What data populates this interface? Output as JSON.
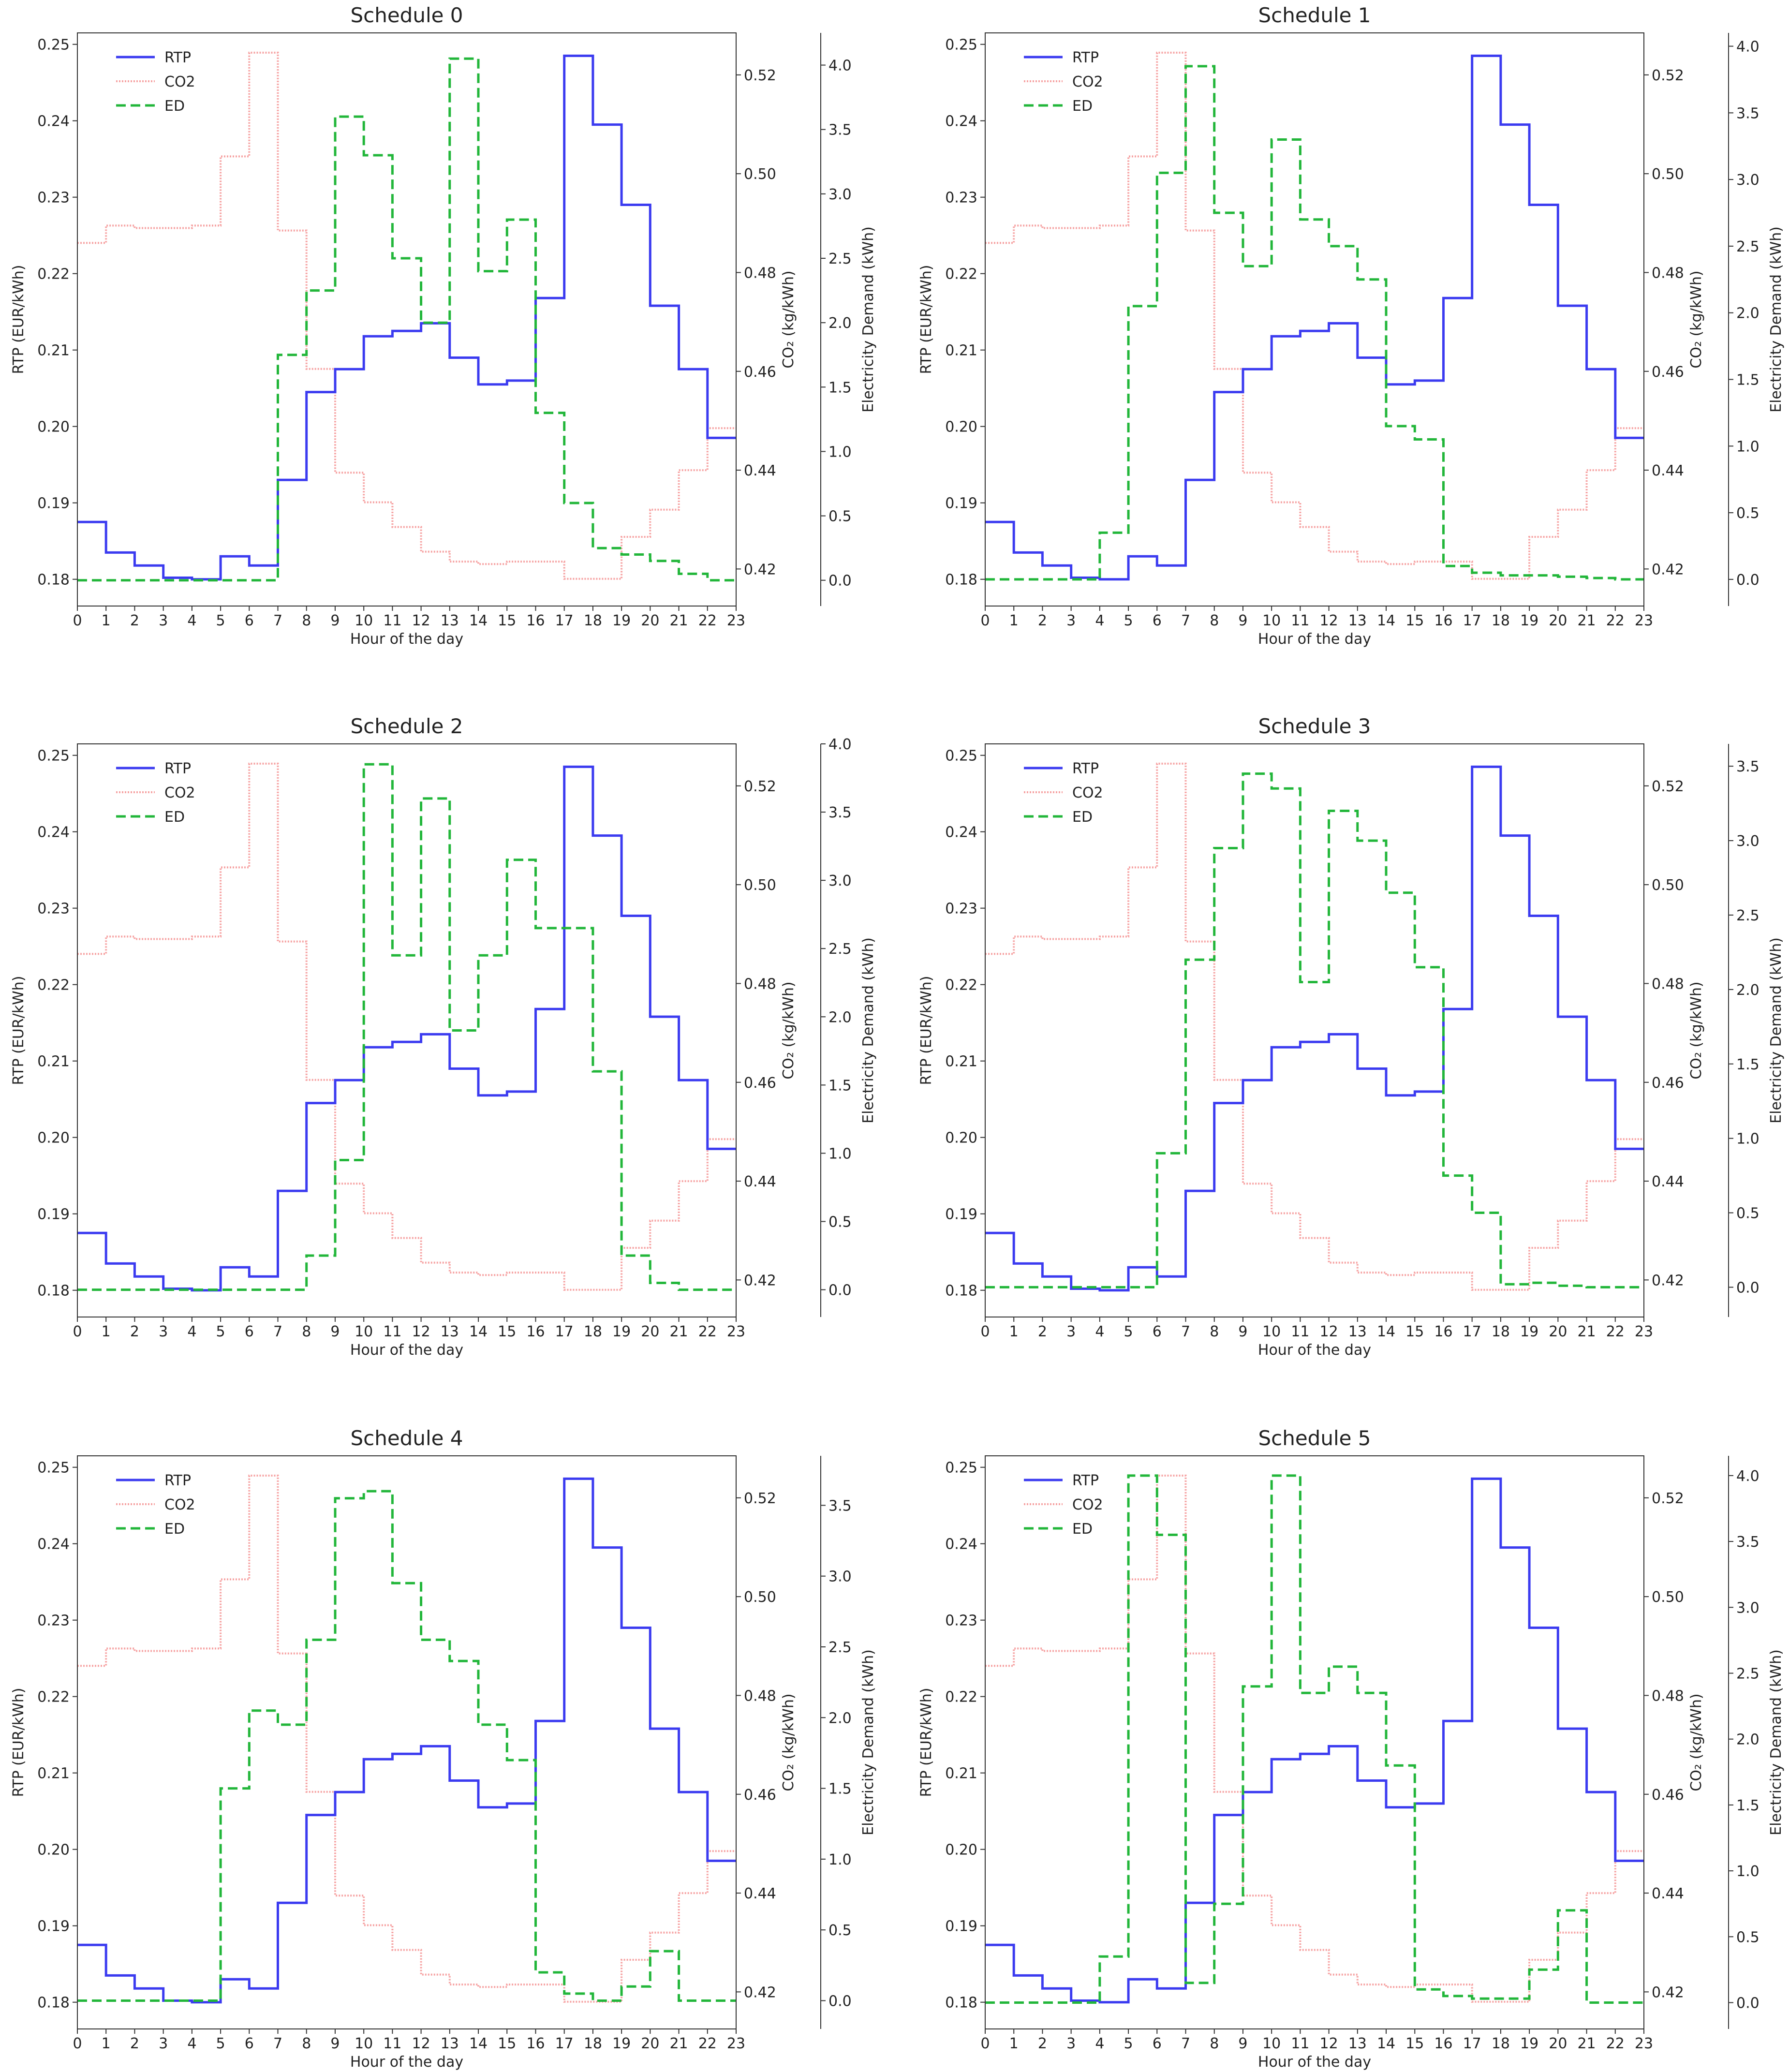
{
  "chart_data": [
    {
      "type": "line",
      "title": "Schedule 0",
      "xlabel": "Hour of the day",
      "ylabel": "RTP (EUR/kWh)",
      "y2label": "CO₂ (kg/kWh)",
      "y3label": "Electricity Demand (kWh)",
      "xticks": [
        "0",
        "1",
        "2",
        "3",
        "4",
        "5",
        "6",
        "7",
        "8",
        "9",
        "10",
        "11",
        "12",
        "13",
        "14",
        "15",
        "16",
        "17",
        "18",
        "19",
        "20",
        "21",
        "22",
        "23"
      ],
      "legend": [
        "RTP",
        "CO2",
        "ED"
      ],
      "rtp": [
        0.1875,
        0.1835,
        0.1818,
        0.1802,
        0.18,
        0.183,
        0.1818,
        0.193,
        0.2045,
        0.2075,
        0.2118,
        0.2125,
        0.2135,
        0.209,
        0.2055,
        0.206,
        0.2168,
        0.2485,
        0.2395,
        0.229,
        0.2158,
        0.2075,
        0.1985,
        0.1985
      ],
      "co2": [
        0.486,
        0.4895,
        0.489,
        0.489,
        0.4895,
        0.5035,
        0.5245,
        0.4885,
        0.4605,
        0.4395,
        0.4335,
        0.4285,
        0.4235,
        0.4215,
        0.421,
        0.4215,
        0.4215,
        0.418,
        0.418,
        0.4265,
        0.432,
        0.44,
        0.4485,
        0.4485
      ],
      "ed": [
        0,
        0,
        0,
        0,
        0,
        0,
        0,
        1.75,
        2.25,
        3.6,
        3.3,
        2.5,
        2.0,
        4.05,
        2.4,
        2.8,
        1.3,
        0.6,
        0.25,
        0.2,
        0.15,
        0.05,
        0.0,
        0.0
      ],
      "rtp_ticks": [
        "0.18",
        "0.19",
        "0.20",
        "0.21",
        "0.22",
        "0.23",
        "0.24",
        "0.25"
      ],
      "co2_ticks": [
        "0.42",
        "0.44",
        "0.46",
        "0.48",
        "0.50",
        "0.52"
      ],
      "ed_ticks": [
        "0.0",
        "0.5",
        "1.0",
        "1.5",
        "2.0",
        "2.5",
        "3.0",
        "3.5",
        "4.0"
      ],
      "ylim_rtp": [
        0.1765,
        0.2515
      ],
      "ylim_co2": [
        0.4125,
        0.5285
      ],
      "ylim_ed": [
        -0.2,
        4.25
      ]
    },
    {
      "type": "line",
      "title": "Schedule 1",
      "xlabel": "Hour of the day",
      "ylabel": "RTP (EUR/kWh)",
      "y2label": "CO₂ (kg/kWh)",
      "y3label": "Electricity Demand (kWh)",
      "xticks": [
        "0",
        "1",
        "2",
        "3",
        "4",
        "5",
        "6",
        "7",
        "8",
        "9",
        "10",
        "11",
        "12",
        "13",
        "14",
        "15",
        "16",
        "17",
        "18",
        "19",
        "20",
        "21",
        "22",
        "23"
      ],
      "legend": [
        "RTP",
        "CO2",
        "ED"
      ],
      "rtp": [
        0.1875,
        0.1835,
        0.1818,
        0.1802,
        0.18,
        0.183,
        0.1818,
        0.193,
        0.2045,
        0.2075,
        0.2118,
        0.2125,
        0.2135,
        0.209,
        0.2055,
        0.206,
        0.2168,
        0.2485,
        0.2395,
        0.229,
        0.2158,
        0.2075,
        0.1985,
        0.1985
      ],
      "co2": [
        0.486,
        0.4895,
        0.489,
        0.489,
        0.4895,
        0.5035,
        0.5245,
        0.4885,
        0.4605,
        0.4395,
        0.4335,
        0.4285,
        0.4235,
        0.4215,
        0.421,
        0.4215,
        0.4215,
        0.418,
        0.418,
        0.4265,
        0.432,
        0.44,
        0.4485,
        0.4485
      ],
      "ed": [
        0,
        0,
        0,
        0,
        0.35,
        2.05,
        3.05,
        3.85,
        2.75,
        2.35,
        3.3,
        2.7,
        2.5,
        2.25,
        1.15,
        1.05,
        0.1,
        0.05,
        0.03,
        0.03,
        0.02,
        0.01,
        0.0,
        0.0
      ],
      "rtp_ticks": [
        "0.18",
        "0.19",
        "0.20",
        "0.21",
        "0.22",
        "0.23",
        "0.24",
        "0.25"
      ],
      "co2_ticks": [
        "0.42",
        "0.44",
        "0.46",
        "0.48",
        "0.50",
        "0.52"
      ],
      "ed_ticks": [
        "0.0",
        "0.5",
        "1.0",
        "1.5",
        "2.0",
        "2.5",
        "3.0",
        "3.5",
        "4.0"
      ],
      "ylim_rtp": [
        0.1765,
        0.2515
      ],
      "ylim_co2": [
        0.4125,
        0.5285
      ],
      "ylim_ed": [
        -0.2,
        4.1
      ]
    },
    {
      "type": "line",
      "title": "Schedule 2",
      "xlabel": "Hour of the day",
      "ylabel": "RTP (EUR/kWh)",
      "y2label": "CO₂ (kg/kWh)",
      "y3label": "Electricity Demand (kWh)",
      "xticks": [
        "0",
        "1",
        "2",
        "3",
        "4",
        "5",
        "6",
        "7",
        "8",
        "9",
        "10",
        "11",
        "12",
        "13",
        "14",
        "15",
        "16",
        "17",
        "18",
        "19",
        "20",
        "21",
        "22",
        "23"
      ],
      "legend": [
        "RTP",
        "CO2",
        "ED"
      ],
      "rtp": [
        0.1875,
        0.1835,
        0.1818,
        0.1802,
        0.18,
        0.183,
        0.1818,
        0.193,
        0.2045,
        0.2075,
        0.2118,
        0.2125,
        0.2135,
        0.209,
        0.2055,
        0.206,
        0.2168,
        0.2485,
        0.2395,
        0.229,
        0.2158,
        0.2075,
        0.1985,
        0.1985
      ],
      "co2": [
        0.486,
        0.4895,
        0.489,
        0.489,
        0.4895,
        0.5035,
        0.5245,
        0.4885,
        0.4605,
        0.4395,
        0.4335,
        0.4285,
        0.4235,
        0.4215,
        0.421,
        0.4215,
        0.4215,
        0.418,
        0.418,
        0.4265,
        0.432,
        0.44,
        0.4485,
        0.4485
      ],
      "ed": [
        0,
        0,
        0,
        0,
        0,
        0,
        0,
        0,
        0.25,
        0.95,
        3.85,
        2.45,
        3.6,
        1.9,
        2.45,
        3.15,
        2.65,
        2.65,
        1.6,
        0.25,
        0.05,
        0.0,
        0.0,
        0.0
      ],
      "rtp_ticks": [
        "0.18",
        "0.19",
        "0.20",
        "0.21",
        "0.22",
        "0.23",
        "0.24",
        "0.25"
      ],
      "co2_ticks": [
        "0.42",
        "0.44",
        "0.46",
        "0.48",
        "0.50",
        "0.52"
      ],
      "ed_ticks": [
        "0.0",
        "0.5",
        "1.0",
        "1.5",
        "2.0",
        "2.5",
        "3.0",
        "3.5",
        "4.0"
      ],
      "ylim_rtp": [
        0.1765,
        0.2515
      ],
      "ylim_co2": [
        0.4125,
        0.5285
      ],
      "ylim_ed": [
        -0.2,
        4.0
      ]
    },
    {
      "type": "line",
      "title": "Schedule 3",
      "xlabel": "Hour of the day",
      "ylabel": "RTP (EUR/kWh)",
      "y2label": "CO₂ (kg/kWh)",
      "y3label": "Electricity Demand (kWh)",
      "xticks": [
        "0",
        "1",
        "2",
        "3",
        "4",
        "5",
        "6",
        "7",
        "8",
        "9",
        "10",
        "11",
        "12",
        "13",
        "14",
        "15",
        "16",
        "17",
        "18",
        "19",
        "20",
        "21",
        "22",
        "23"
      ],
      "legend": [
        "RTP",
        "CO2",
        "ED"
      ],
      "rtp": [
        0.1875,
        0.1835,
        0.1818,
        0.1802,
        0.18,
        0.183,
        0.1818,
        0.193,
        0.2045,
        0.2075,
        0.2118,
        0.2125,
        0.2135,
        0.209,
        0.2055,
        0.206,
        0.2168,
        0.2485,
        0.2395,
        0.229,
        0.2158,
        0.2075,
        0.1985,
        0.1985
      ],
      "co2": [
        0.486,
        0.4895,
        0.489,
        0.489,
        0.4895,
        0.5035,
        0.5245,
        0.4885,
        0.4605,
        0.4395,
        0.4335,
        0.4285,
        0.4235,
        0.4215,
        0.421,
        0.4215,
        0.4215,
        0.418,
        0.418,
        0.4265,
        0.432,
        0.44,
        0.4485,
        0.4485
      ],
      "ed": [
        0,
        0,
        0,
        0,
        0,
        0,
        0.9,
        2.2,
        2.95,
        3.45,
        3.35,
        2.05,
        3.2,
        3.0,
        2.65,
        2.15,
        0.75,
        0.5,
        0.02,
        0.03,
        0.01,
        0.0,
        0.0,
        0.0
      ],
      "rtp_ticks": [
        "0.18",
        "0.19",
        "0.20",
        "0.21",
        "0.22",
        "0.23",
        "0.24",
        "0.25"
      ],
      "co2_ticks": [
        "0.42",
        "0.44",
        "0.46",
        "0.48",
        "0.50",
        "0.52"
      ],
      "ed_ticks": [
        "0.0",
        "0.5",
        "1.0",
        "1.5",
        "2.0",
        "2.5",
        "3.0",
        "3.5"
      ],
      "ylim_rtp": [
        0.1765,
        0.2515
      ],
      "ylim_co2": [
        0.4125,
        0.5285
      ],
      "ylim_ed": [
        -0.2,
        3.65
      ]
    },
    {
      "type": "line",
      "title": "Schedule 4",
      "xlabel": "Hour of the day",
      "ylabel": "RTP (EUR/kWh)",
      "y2label": "CO₂ (kg/kWh)",
      "y3label": "Electricity Demand (kWh)",
      "xticks": [
        "0",
        "1",
        "2",
        "3",
        "4",
        "5",
        "6",
        "7",
        "8",
        "9",
        "10",
        "11",
        "12",
        "13",
        "14",
        "15",
        "16",
        "17",
        "18",
        "19",
        "20",
        "21",
        "22",
        "23"
      ],
      "legend": [
        "RTP",
        "CO2",
        "ED"
      ],
      "rtp": [
        0.1875,
        0.1835,
        0.1818,
        0.1802,
        0.18,
        0.183,
        0.1818,
        0.193,
        0.2045,
        0.2075,
        0.2118,
        0.2125,
        0.2135,
        0.209,
        0.2055,
        0.206,
        0.2168,
        0.2485,
        0.2395,
        0.229,
        0.2158,
        0.2075,
        0.1985,
        0.1985
      ],
      "co2": [
        0.486,
        0.4895,
        0.489,
        0.489,
        0.4895,
        0.5035,
        0.5245,
        0.4885,
        0.4605,
        0.4395,
        0.4335,
        0.4285,
        0.4235,
        0.4215,
        0.421,
        0.4215,
        0.4215,
        0.418,
        0.418,
        0.4265,
        0.432,
        0.44,
        0.4485,
        0.4485
      ],
      "ed": [
        0,
        0,
        0,
        0,
        0,
        1.5,
        2.05,
        1.95,
        2.55,
        3.55,
        3.6,
        2.95,
        2.55,
        2.4,
        1.95,
        1.7,
        0.2,
        0.05,
        0.0,
        0.1,
        0.35,
        0.0,
        0.0,
        0.0
      ],
      "rtp_ticks": [
        "0.18",
        "0.19",
        "0.20",
        "0.21",
        "0.22",
        "0.23",
        "0.24",
        "0.25"
      ],
      "co2_ticks": [
        "0.42",
        "0.44",
        "0.46",
        "0.48",
        "0.50",
        "0.52"
      ],
      "ed_ticks": [
        "0.0",
        "0.5",
        "1.0",
        "1.5",
        "2.0",
        "2.5",
        "3.0",
        "3.5"
      ],
      "ylim_rtp": [
        0.1765,
        0.2515
      ],
      "ylim_co2": [
        0.4125,
        0.5285
      ],
      "ylim_ed": [
        -0.2,
        3.85
      ]
    },
    {
      "type": "line",
      "title": "Schedule 5",
      "xlabel": "Hour of the day",
      "ylabel": "RTP (EUR/kWh)",
      "y2label": "CO₂ (kg/kWh)",
      "y3label": "Electricity Demand (kWh)",
      "xticks": [
        "0",
        "1",
        "2",
        "3",
        "4",
        "5",
        "6",
        "7",
        "8",
        "9",
        "10",
        "11",
        "12",
        "13",
        "14",
        "15",
        "16",
        "17",
        "18",
        "19",
        "20",
        "21",
        "22",
        "23"
      ],
      "legend": [
        "RTP",
        "CO2",
        "ED"
      ],
      "rtp": [
        0.1875,
        0.1835,
        0.1818,
        0.1802,
        0.18,
        0.183,
        0.1818,
        0.193,
        0.2045,
        0.2075,
        0.2118,
        0.2125,
        0.2135,
        0.209,
        0.2055,
        0.206,
        0.2168,
        0.2485,
        0.2395,
        0.229,
        0.2158,
        0.2075,
        0.1985,
        0.1985
      ],
      "co2": [
        0.486,
        0.4895,
        0.489,
        0.489,
        0.4895,
        0.5035,
        0.5245,
        0.4885,
        0.4605,
        0.4395,
        0.4335,
        0.4285,
        0.4235,
        0.4215,
        0.421,
        0.4215,
        0.4215,
        0.418,
        0.418,
        0.4265,
        0.432,
        0.44,
        0.4485,
        0.4485
      ],
      "ed": [
        0,
        0,
        0,
        0,
        0.35,
        4.0,
        3.55,
        0.15,
        0.75,
        2.4,
        4.0,
        2.35,
        2.55,
        2.35,
        1.8,
        0.1,
        0.05,
        0.03,
        0.03,
        0.25,
        0.7,
        0.0,
        0.0,
        0.0
      ],
      "rtp_ticks": [
        "0.18",
        "0.19",
        "0.20",
        "0.21",
        "0.22",
        "0.23",
        "0.24",
        "0.25"
      ],
      "co2_ticks": [
        "0.42",
        "0.44",
        "0.46",
        "0.48",
        "0.50",
        "0.52"
      ],
      "ed_ticks": [
        "0.0",
        "0.5",
        "1.0",
        "1.5",
        "2.0",
        "2.5",
        "3.0",
        "3.5",
        "4.0"
      ],
      "ylim_rtp": [
        0.1765,
        0.2515
      ],
      "ylim_co2": [
        0.4125,
        0.5285
      ],
      "ylim_ed": [
        -0.2,
        4.15
      ]
    }
  ],
  "colors": {
    "rtp": "#3b3bf0",
    "co2": "#f6a2a2",
    "ed": "#22b63a",
    "axis": "#333333"
  }
}
